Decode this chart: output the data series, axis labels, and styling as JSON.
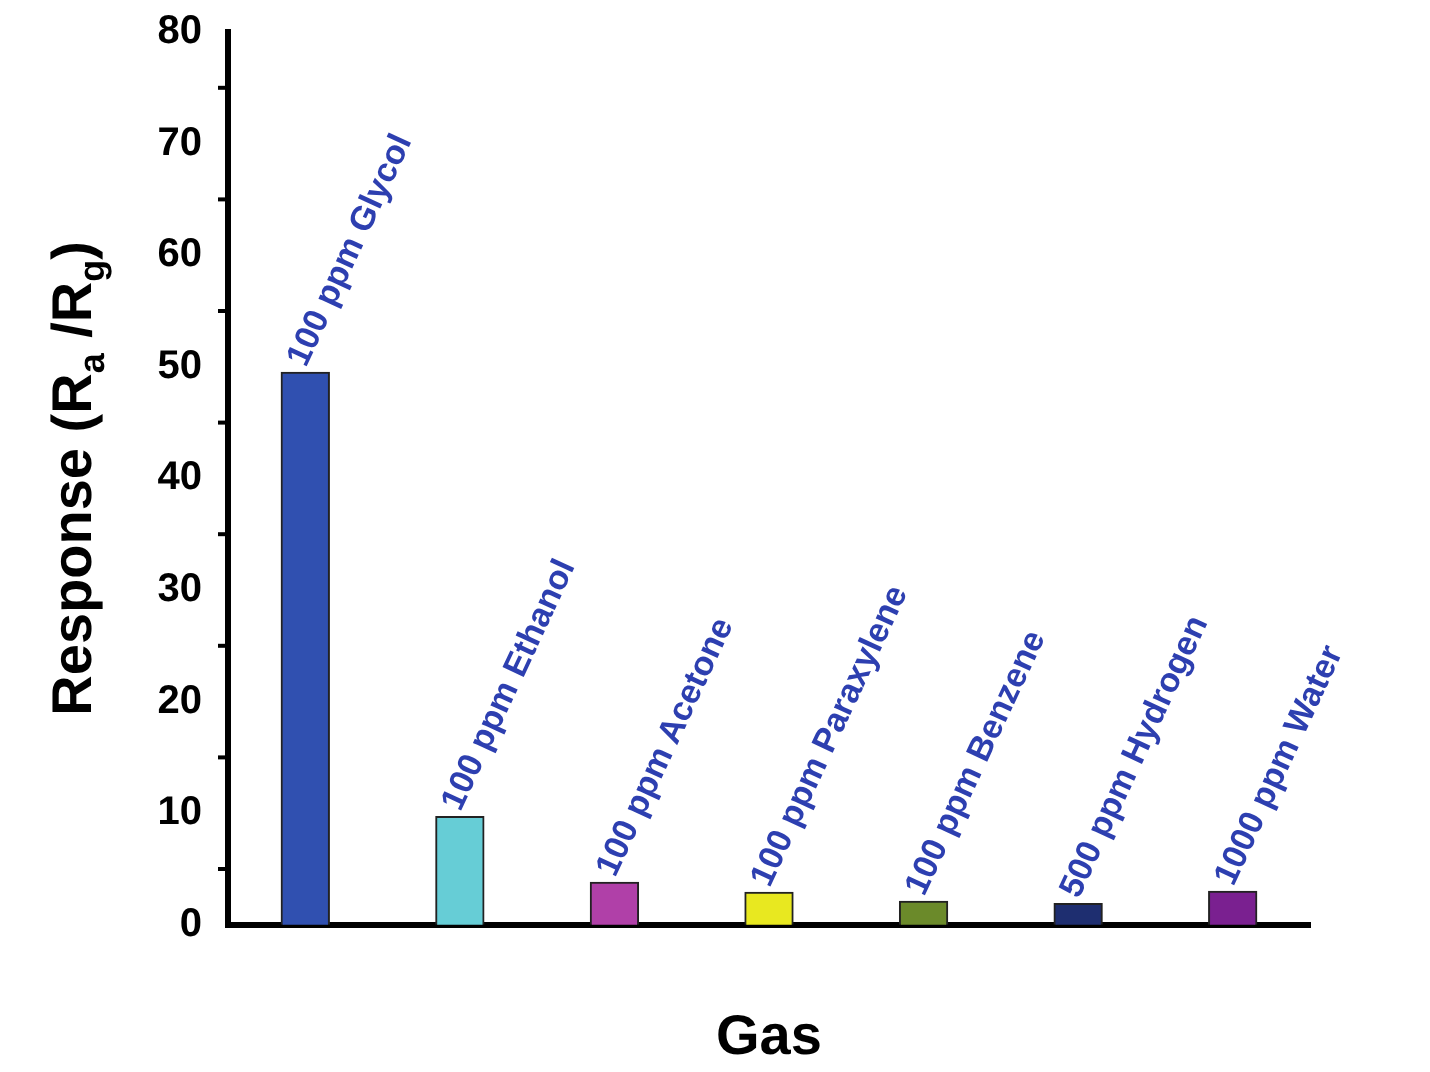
{
  "chart_data": {
    "type": "bar",
    "xlabel": "Gas",
    "ylabel": "Response (R$_{a}$ /R$_{g}$)",
    "categories": [
      "100 ppm Glycol",
      "100 ppm Ethanol",
      "100 ppm Acetone",
      "100 ppm Paraxylene",
      "100 ppm Benzene",
      "500 ppm Hydrogen",
      "1000 ppm Water"
    ],
    "values": [
      49.5,
      9.7,
      3.8,
      2.9,
      2.1,
      1.9,
      3.0
    ],
    "colors": [
      "#3050b0",
      "#66cdd6",
      "#b040a8",
      "#e8e820",
      "#6b8a2a",
      "#1e2e70",
      "#7a2090"
    ],
    "ylim": [
      0,
      80
    ],
    "yticks": [
      0,
      10,
      20,
      30,
      40,
      50,
      60,
      70,
      80
    ],
    "grid": false,
    "legend": false,
    "tick_labels": "y"
  }
}
